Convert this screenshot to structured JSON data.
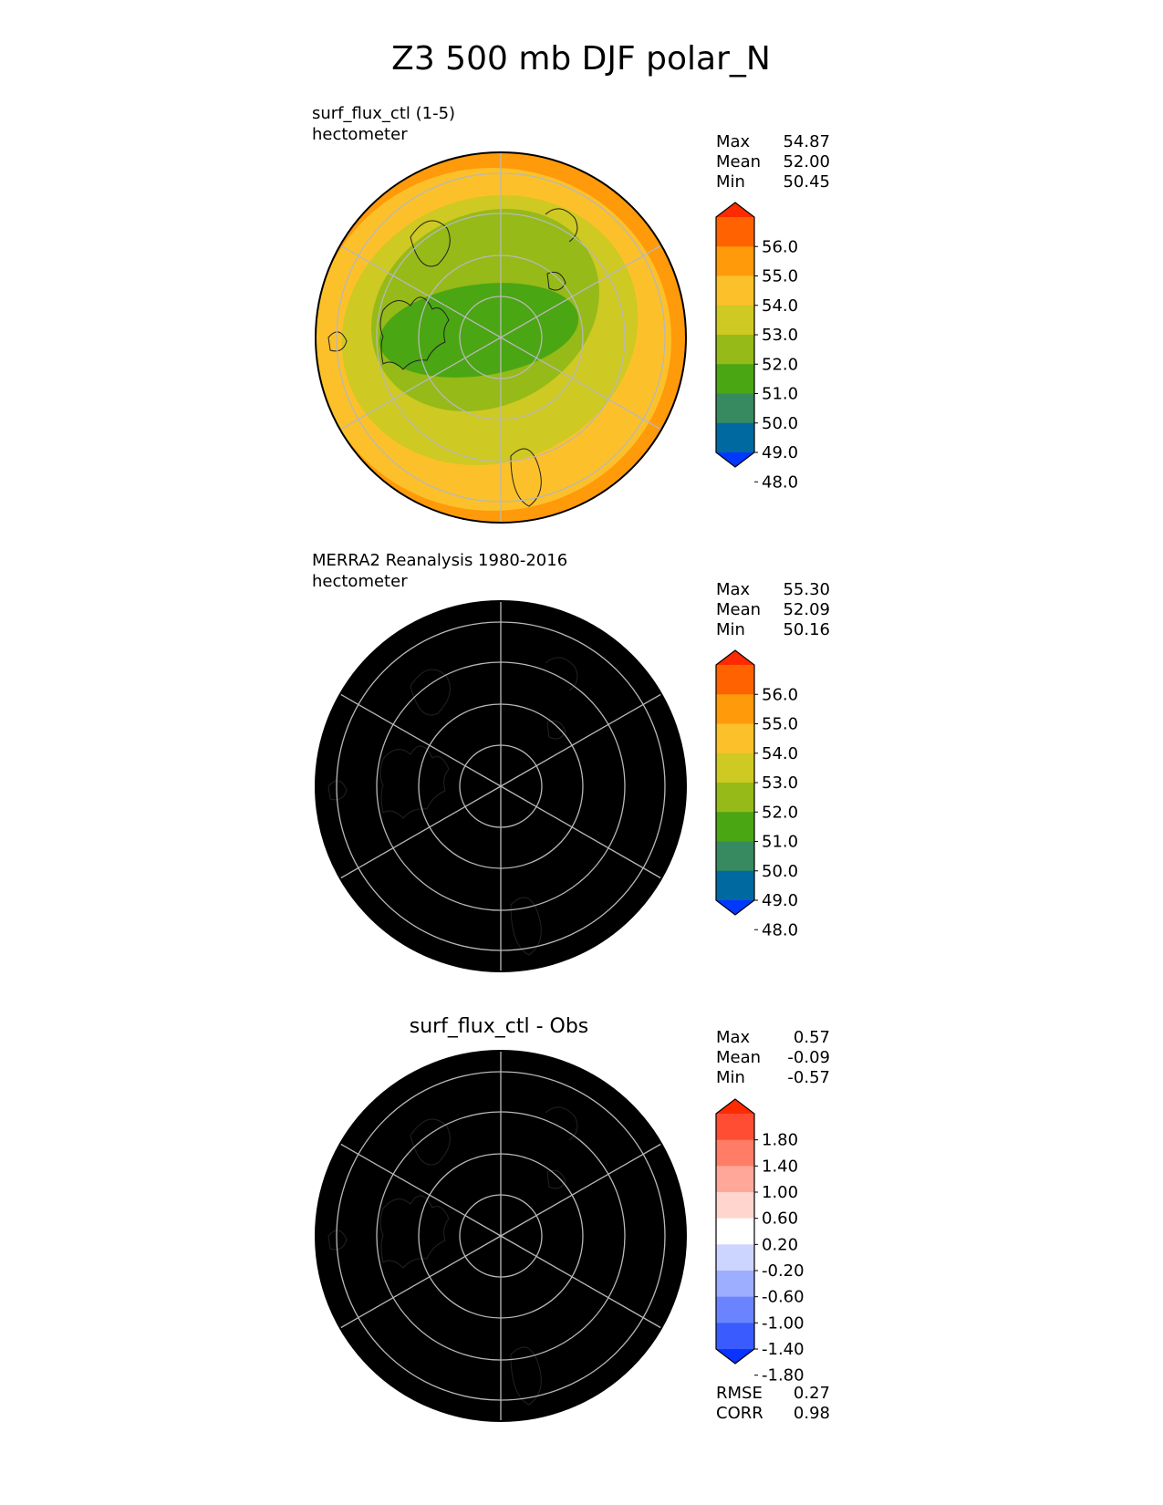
{
  "title": "Z3 500 mb DJF polar_N",
  "panels": [
    {
      "id": "test",
      "subtitle": "surf_flux_ctl (1-5)",
      "units": "hectometer",
      "center_title": "",
      "stats": [
        {
          "label": "Max",
          "value": "54.87"
        },
        {
          "label": "Mean",
          "value": "52.00"
        },
        {
          "label": "Min",
          "value": "50.45"
        }
      ],
      "colorbar": {
        "ticks": [
          "56.0",
          "55.0",
          "54.0",
          "53.0",
          "52.0",
          "51.0",
          "50.0",
          "49.0",
          "48.0"
        ],
        "colors": [
          "#ff2b00",
          "#ff6200",
          "#ff9a0a",
          "#fcc12a",
          "#cfc923",
          "#96ba18",
          "#4aa612",
          "#378a5f",
          "#0069a0",
          "#0038ff"
        ]
      },
      "field_colors": {
        "outer": "#ff9a0a",
        "ring": "#fcc12a",
        "mid": "#cfc923",
        "inner": "#96ba18",
        "core": "#4aa612"
      },
      "extra_stats": []
    },
    {
      "id": "ref",
      "subtitle": "MERRA2 Reanalysis 1980-2016",
      "units": "hectometer",
      "center_title": "",
      "stats": [
        {
          "label": "Max",
          "value": "55.30"
        },
        {
          "label": "Mean",
          "value": "52.09"
        },
        {
          "label": "Min",
          "value": "50.16"
        }
      ],
      "colorbar": {
        "ticks": [
          "56.0",
          "55.0",
          "54.0",
          "53.0",
          "52.0",
          "51.0",
          "50.0",
          "49.0",
          "48.0"
        ],
        "colors": [
          "#ff2b00",
          "#ff6200",
          "#ff9a0a",
          "#fcc12a",
          "#cfc923",
          "#96ba18",
          "#4aa612",
          "#378a5f",
          "#0069a0",
          "#0038ff"
        ]
      },
      "field_colors": {
        "outer": "#ff9a0a",
        "ring": "#fcc12a",
        "mid": "#cfc923",
        "inner": "#96ba18",
        "core": "#4aa612"
      },
      "extra_stats": []
    },
    {
      "id": "diff",
      "subtitle": "",
      "units": "",
      "center_title": "surf_flux_ctl - Obs",
      "stats": [
        {
          "label": "Max",
          "value": "0.57"
        },
        {
          "label": "Mean",
          "value": "-0.09"
        },
        {
          "label": "Min",
          "value": "-0.57"
        }
      ],
      "colorbar": {
        "ticks": [
          "1.80",
          "1.40",
          "1.00",
          "0.60",
          "0.20",
          "-0.20",
          "-0.60",
          "-1.00",
          "-1.40",
          "-1.80"
        ],
        "colors": [
          "#ff2b00",
          "#ff4d33",
          "#ff7d66",
          "#ffa89a",
          "#ffd5cd",
          "#ffffff",
          "#ccd5ff",
          "#9dadff",
          "#6a84ff",
          "#3a5cff",
          "#0a33ff"
        ]
      },
      "field_colors": {
        "negative": "#ccd5ff",
        "positive": "#ffd5cd",
        "neutral": "#ffffff"
      },
      "extra_stats": [
        {
          "label": "RMSE",
          "value": "0.27"
        },
        {
          "label": "CORR",
          "value": "0.98"
        }
      ]
    }
  ],
  "chart_data": [
    {
      "type": "heatmap",
      "projection": "north polar stereographic",
      "title": "surf_flux_ctl (1-5)",
      "units": "hectometer",
      "levels": [
        48.0,
        49.0,
        50.0,
        51.0,
        52.0,
        53.0,
        54.0,
        55.0,
        56.0
      ],
      "max": 54.87,
      "mean": 52.0,
      "min": 50.45
    },
    {
      "type": "heatmap",
      "projection": "north polar stereographic",
      "title": "MERRA2 Reanalysis 1980-2016",
      "units": "hectometer",
      "levels": [
        48.0,
        49.0,
        50.0,
        51.0,
        52.0,
        53.0,
        54.0,
        55.0,
        56.0
      ],
      "max": 55.3,
      "mean": 52.09,
      "min": 50.16
    },
    {
      "type": "heatmap",
      "projection": "north polar stereographic",
      "title": "surf_flux_ctl - Obs",
      "levels": [
        -1.8,
        -1.4,
        -1.0,
        -0.6,
        -0.2,
        0.2,
        0.6,
        1.0,
        1.4,
        1.8
      ],
      "max": 0.57,
      "mean": -0.09,
      "min": -0.57,
      "rmse": 0.27,
      "corr": 0.98
    }
  ]
}
